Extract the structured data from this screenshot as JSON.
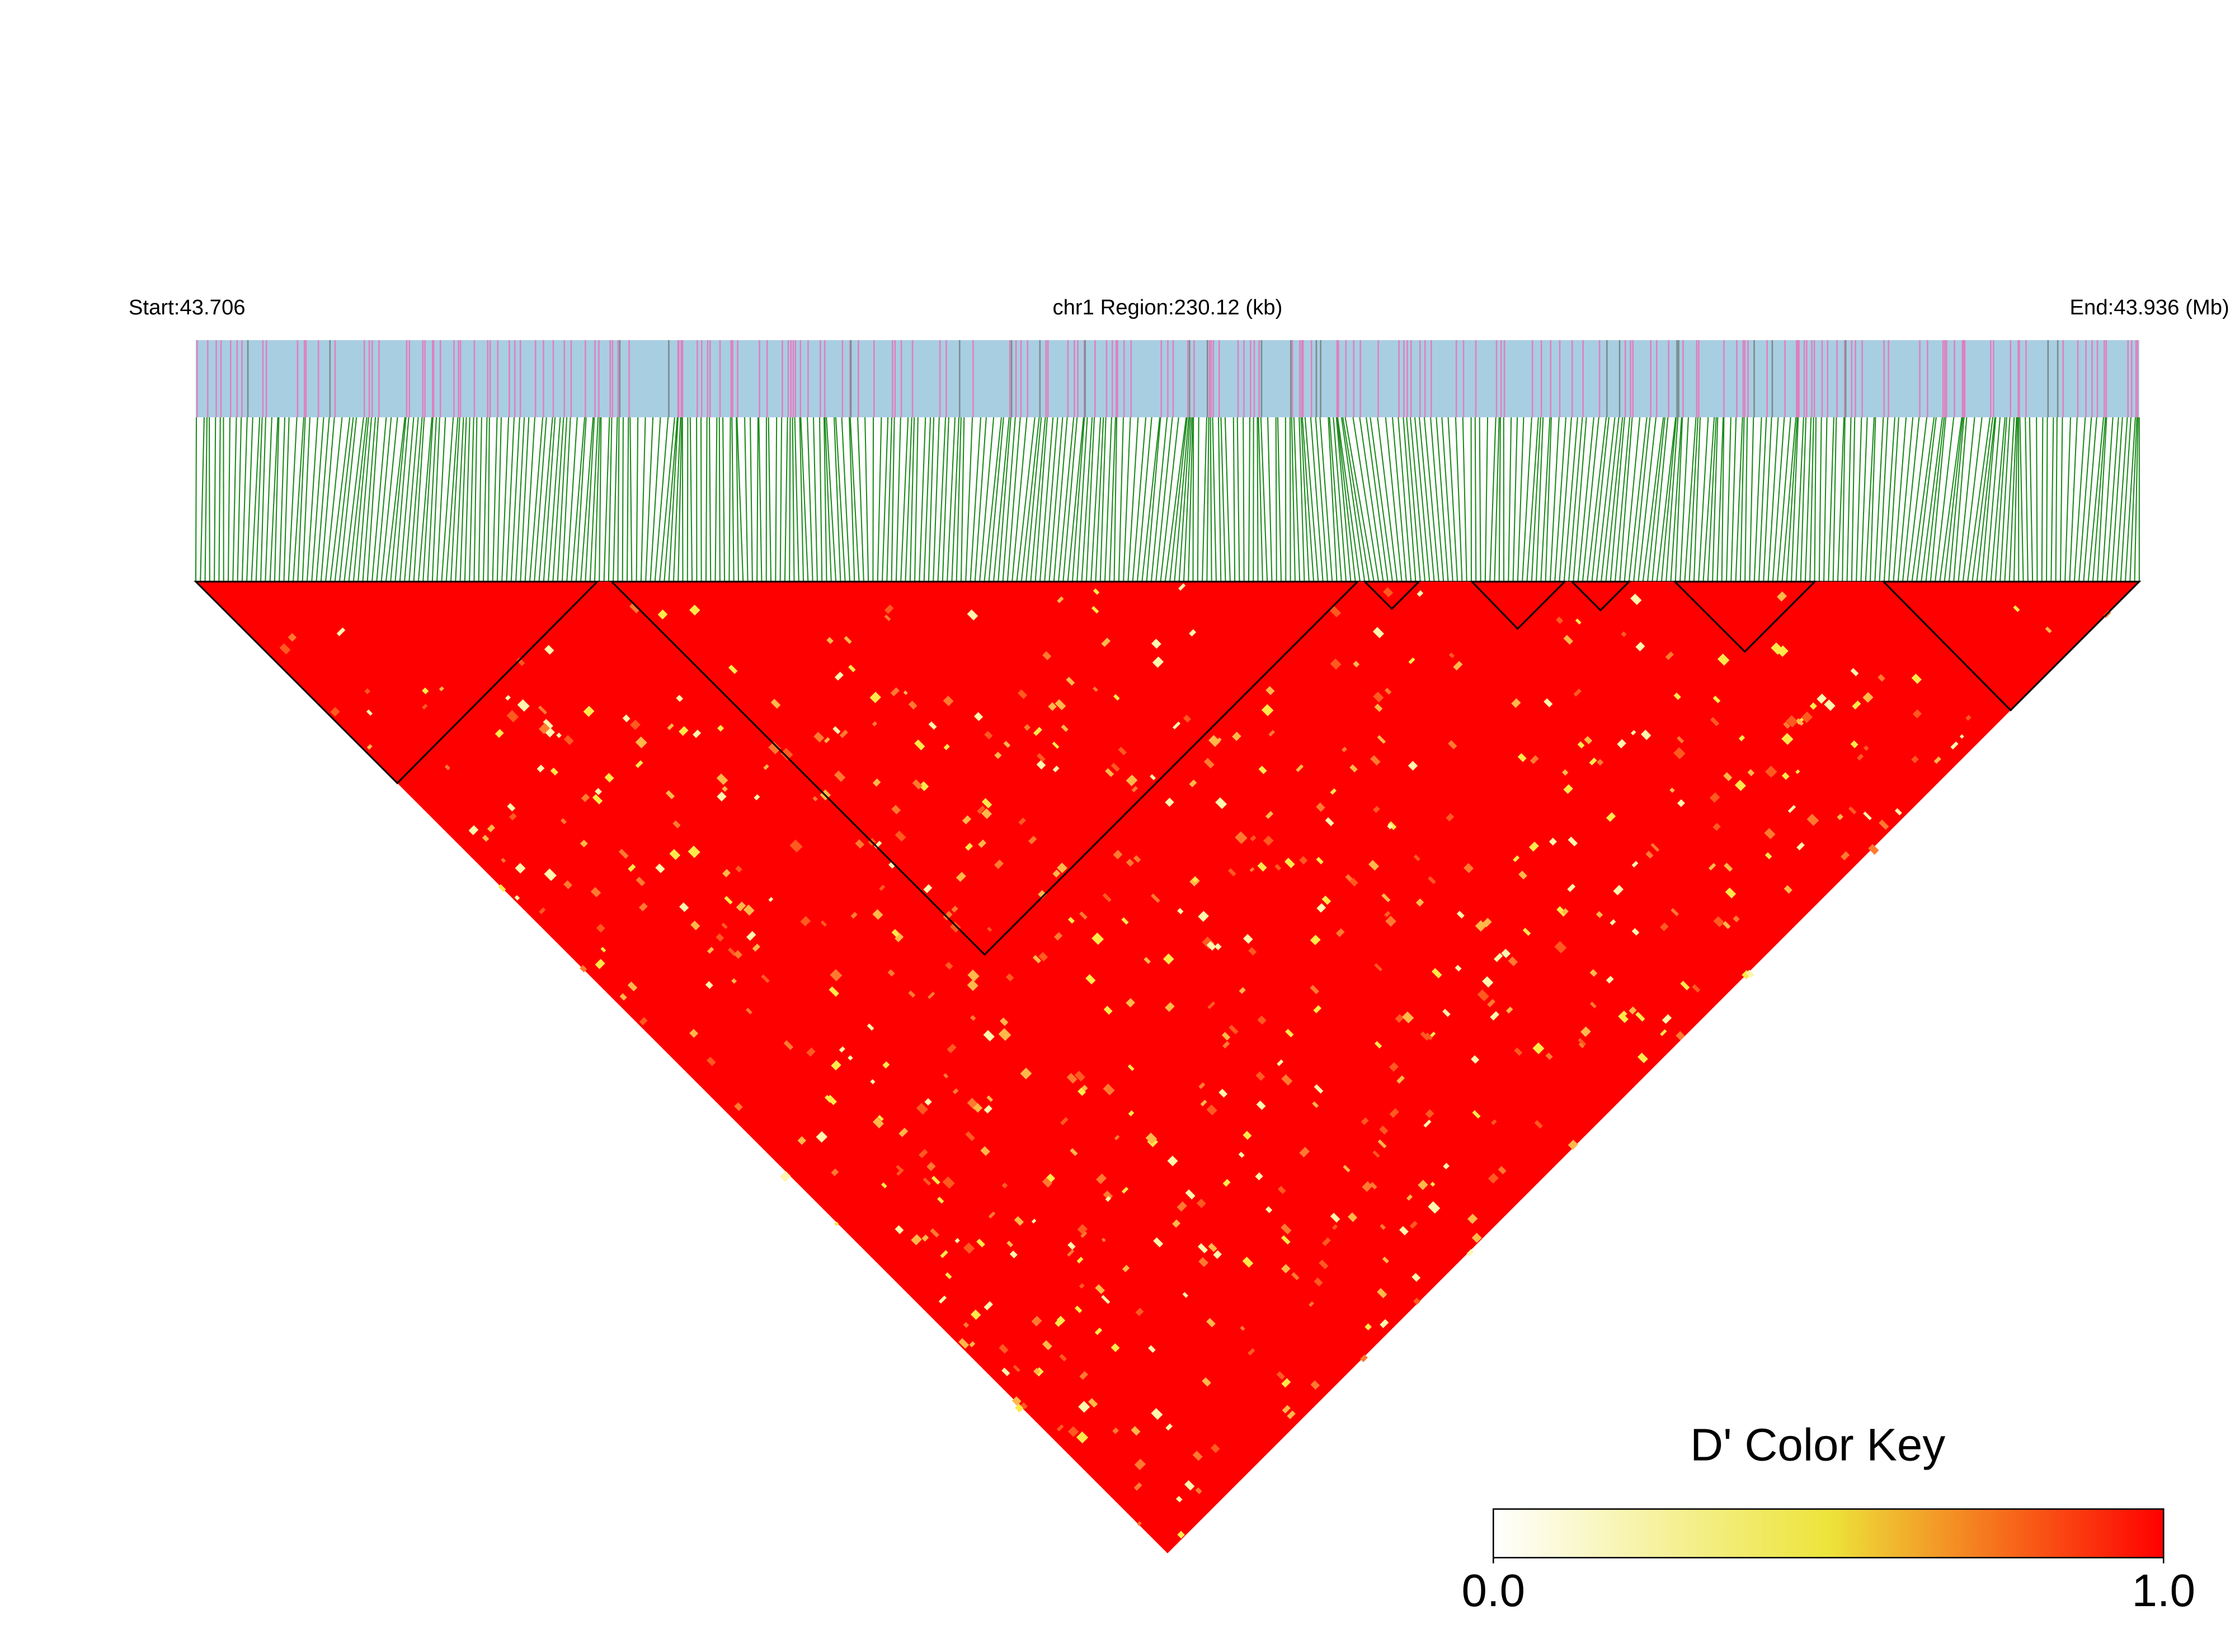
{
  "header": {
    "start": "Start:43.706",
    "region": "chr1 Region:230.12 (kb)",
    "end": "End:43.936 (Mb)"
  },
  "color_key": {
    "title": "D' Color Key",
    "ticks": [
      {
        "value": 0,
        "label": "0.0"
      },
      {
        "value": 1,
        "label": "1.0"
      }
    ]
  }
}
